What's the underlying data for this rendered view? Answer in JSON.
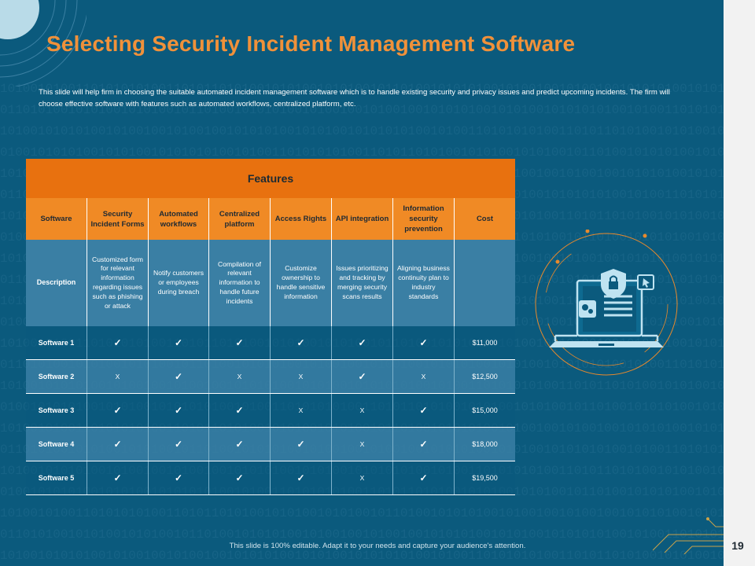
{
  "title": "Selecting Security Incident Management Software",
  "intro": "This slide will help firm in choosing the suitable automated incident management software which is to handle existing security and privacy issues and predict upcoming incidents. The firm will choose effective software with features such as automated workflows, centralized platform, etc.",
  "table": {
    "features_label": "Features",
    "headers": [
      "Software",
      "Security Incident Forms",
      "Automated workflows",
      "Centralized platform",
      "Access Rights",
      "API integration",
      "Information security prevention",
      "Cost"
    ],
    "description": [
      "Description",
      "Customized form for relevant information regarding issues such as phishing or attack",
      "Notify customers or employees during breach",
      "Compilation of relevant information to handle future incidents",
      "Customize ownership to handle sensitive information",
      "Issues prioritizing and tracking by merging security scans results",
      "Aligning business continuity plan to industry standards",
      ""
    ],
    "rows": [
      [
        "Software 1",
        "✓",
        "✓",
        "✓",
        "✓",
        "✓",
        "✓",
        "$11,000"
      ],
      [
        "Software 2",
        "X",
        "✓",
        "X",
        "X",
        "✓",
        "X",
        "$12,500"
      ],
      [
        "Software 3",
        "✓",
        "✓",
        "✓",
        "X",
        "X",
        "✓",
        "$15,000"
      ],
      [
        "Software 4",
        "✓",
        "✓",
        "✓",
        "✓",
        "X",
        "✓",
        "$18,000"
      ],
      [
        "Software 5",
        "✓",
        "✓",
        "✓",
        "✓",
        "X",
        "✓",
        "$19,500"
      ]
    ]
  },
  "footer": "This slide is 100% editable. Adapt it to your needs and capture your audience's attention.",
  "page_number": "19",
  "colors": {
    "background": "#0b5a7d",
    "accent": "#f0913a",
    "header": "#e8710f",
    "description_row": "#3a7fa4"
  },
  "icons": [
    "laptop-security-icon",
    "shield-lock-icon",
    "gears-icon",
    "cursor-icon"
  ]
}
